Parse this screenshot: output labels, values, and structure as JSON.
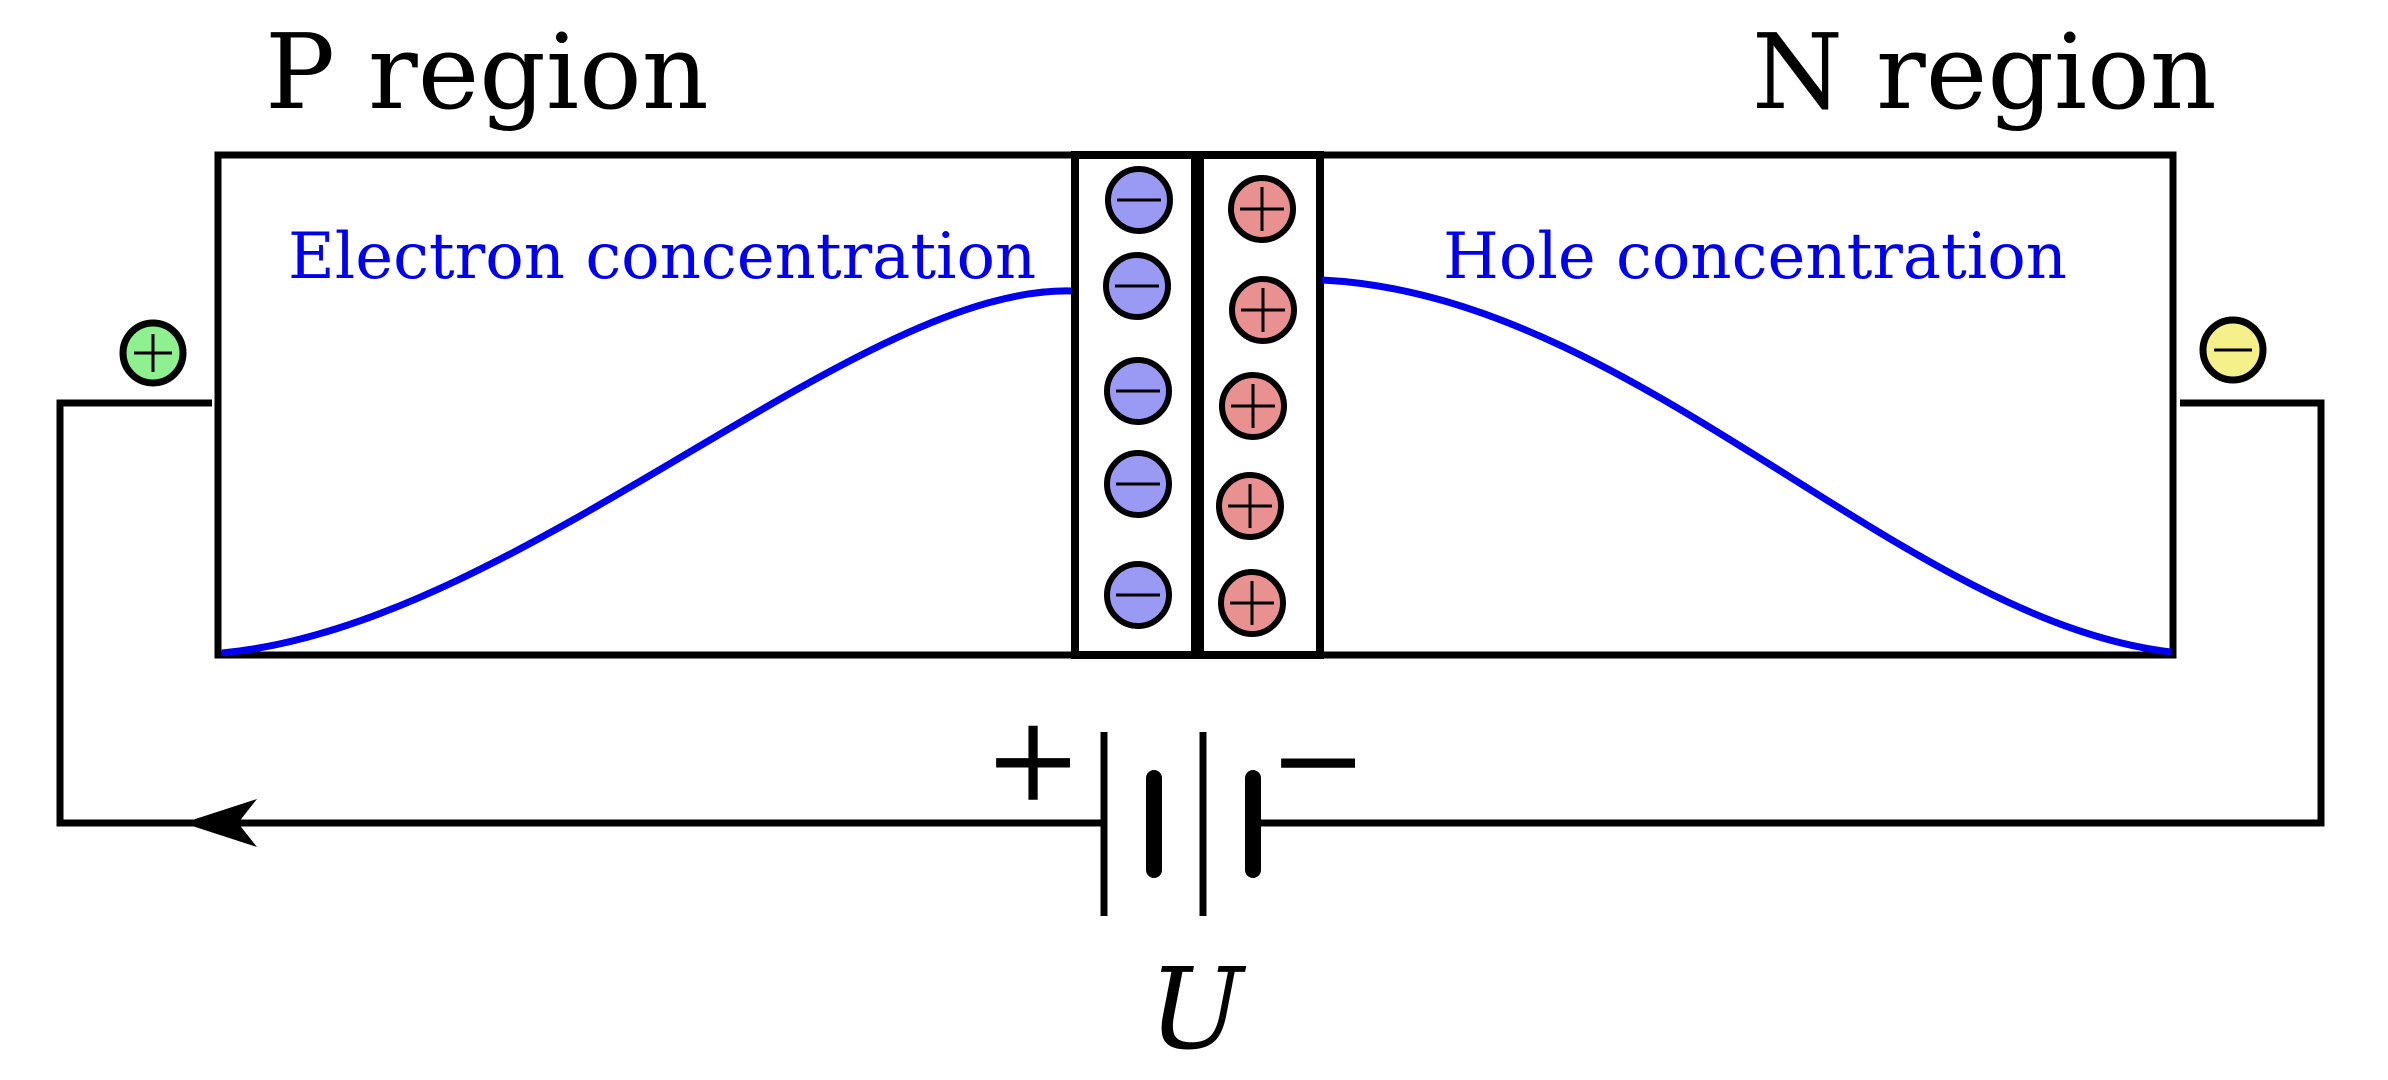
{
  "labels": {
    "p_region": "P region",
    "n_region": "N region",
    "electron_concentration": "Electron concentration",
    "hole_concentration": "Hole concentration",
    "battery_positive": "+",
    "battery_negative": "−",
    "voltage": "U"
  },
  "depletion_layer": {
    "negative_ion_count": 5,
    "positive_ion_count": 5
  },
  "colors": {
    "curve": "#0000ee",
    "negative_ion": "#9a9af5",
    "positive_ion": "#e99090",
    "p_terminal": "#8ef08e",
    "n_terminal": "#f5f08a",
    "stroke": "#000000"
  }
}
